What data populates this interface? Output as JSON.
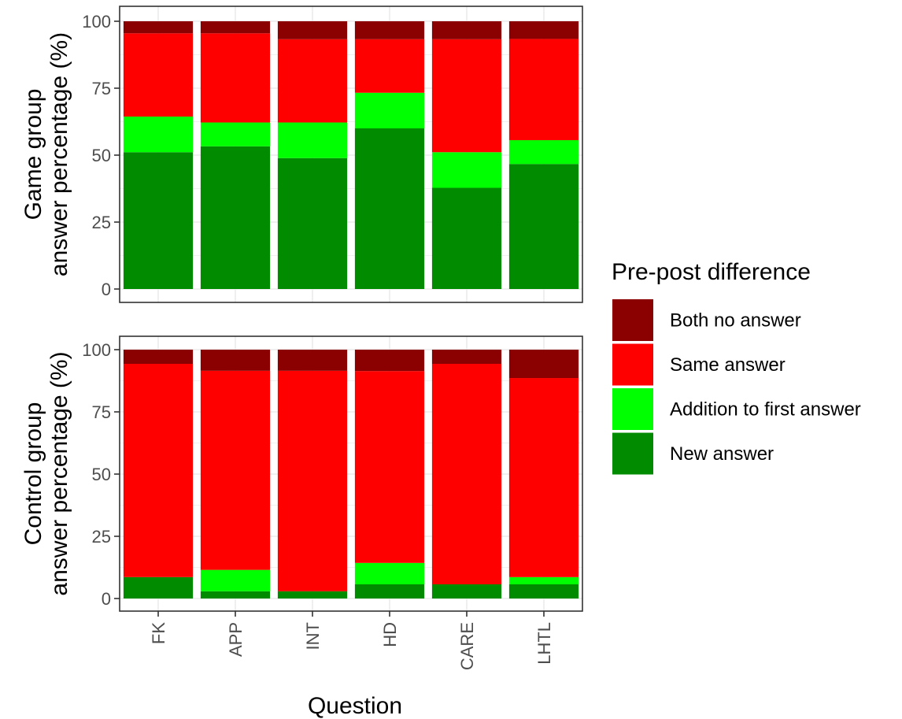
{
  "chart_data": {
    "type": "bar",
    "stacked": true,
    "categories": [
      "FK",
      "APP",
      "INT",
      "HD",
      "CARE",
      "LHTL"
    ],
    "xlabel": "Question",
    "ylim": [
      0,
      100
    ],
    "yticks": [
      0,
      25,
      50,
      75,
      100
    ],
    "grid": true,
    "legend": {
      "title": "Pre-post difference",
      "placement": "right",
      "entries": [
        {
          "key": "both",
          "label": "Both no answer",
          "color": "#8b0000"
        },
        {
          "key": "same",
          "label": "Same answer",
          "color": "#ff0000"
        },
        {
          "key": "addition",
          "label": "Addition to first answer",
          "color": "#00ff00"
        },
        {
          "key": "new",
          "label": "New answer",
          "color": "#008b00"
        }
      ]
    },
    "panels": [
      {
        "ylabel_lines": [
          "Game group",
          "answer percentage (%)"
        ],
        "series": [
          {
            "key": "new",
            "name": "New answer",
            "values": [
              51.1,
              53.3,
              48.9,
              60.0,
              37.8,
              46.7
            ]
          },
          {
            "key": "addition",
            "name": "Addition to first answer",
            "values": [
              13.3,
              8.9,
              13.3,
              13.3,
              13.3,
              8.9
            ]
          },
          {
            "key": "same",
            "name": "Same answer",
            "values": [
              31.1,
              33.3,
              31.1,
              20.0,
              42.2,
              37.8
            ]
          },
          {
            "key": "both",
            "name": "Both no answer",
            "values": [
              4.5,
              4.5,
              6.7,
              6.7,
              6.7,
              6.6
            ]
          }
        ]
      },
      {
        "ylabel_lines": [
          "Control group",
          "answer percentage (%)"
        ],
        "series": [
          {
            "key": "new",
            "name": "New answer",
            "values": [
              8.6,
              2.9,
              2.9,
              5.7,
              5.7,
              5.7
            ]
          },
          {
            "key": "addition",
            "name": "Addition to first answer",
            "values": [
              0,
              8.6,
              0,
              8.6,
              0,
              2.9
            ]
          },
          {
            "key": "same",
            "name": "Same answer",
            "values": [
              85.7,
              80.0,
              88.6,
              77.1,
              88.6,
              80.0
            ]
          },
          {
            "key": "both",
            "name": "Both no answer",
            "values": [
              5.7,
              8.5,
              8.5,
              8.6,
              5.7,
              11.4
            ]
          }
        ]
      }
    ]
  }
}
